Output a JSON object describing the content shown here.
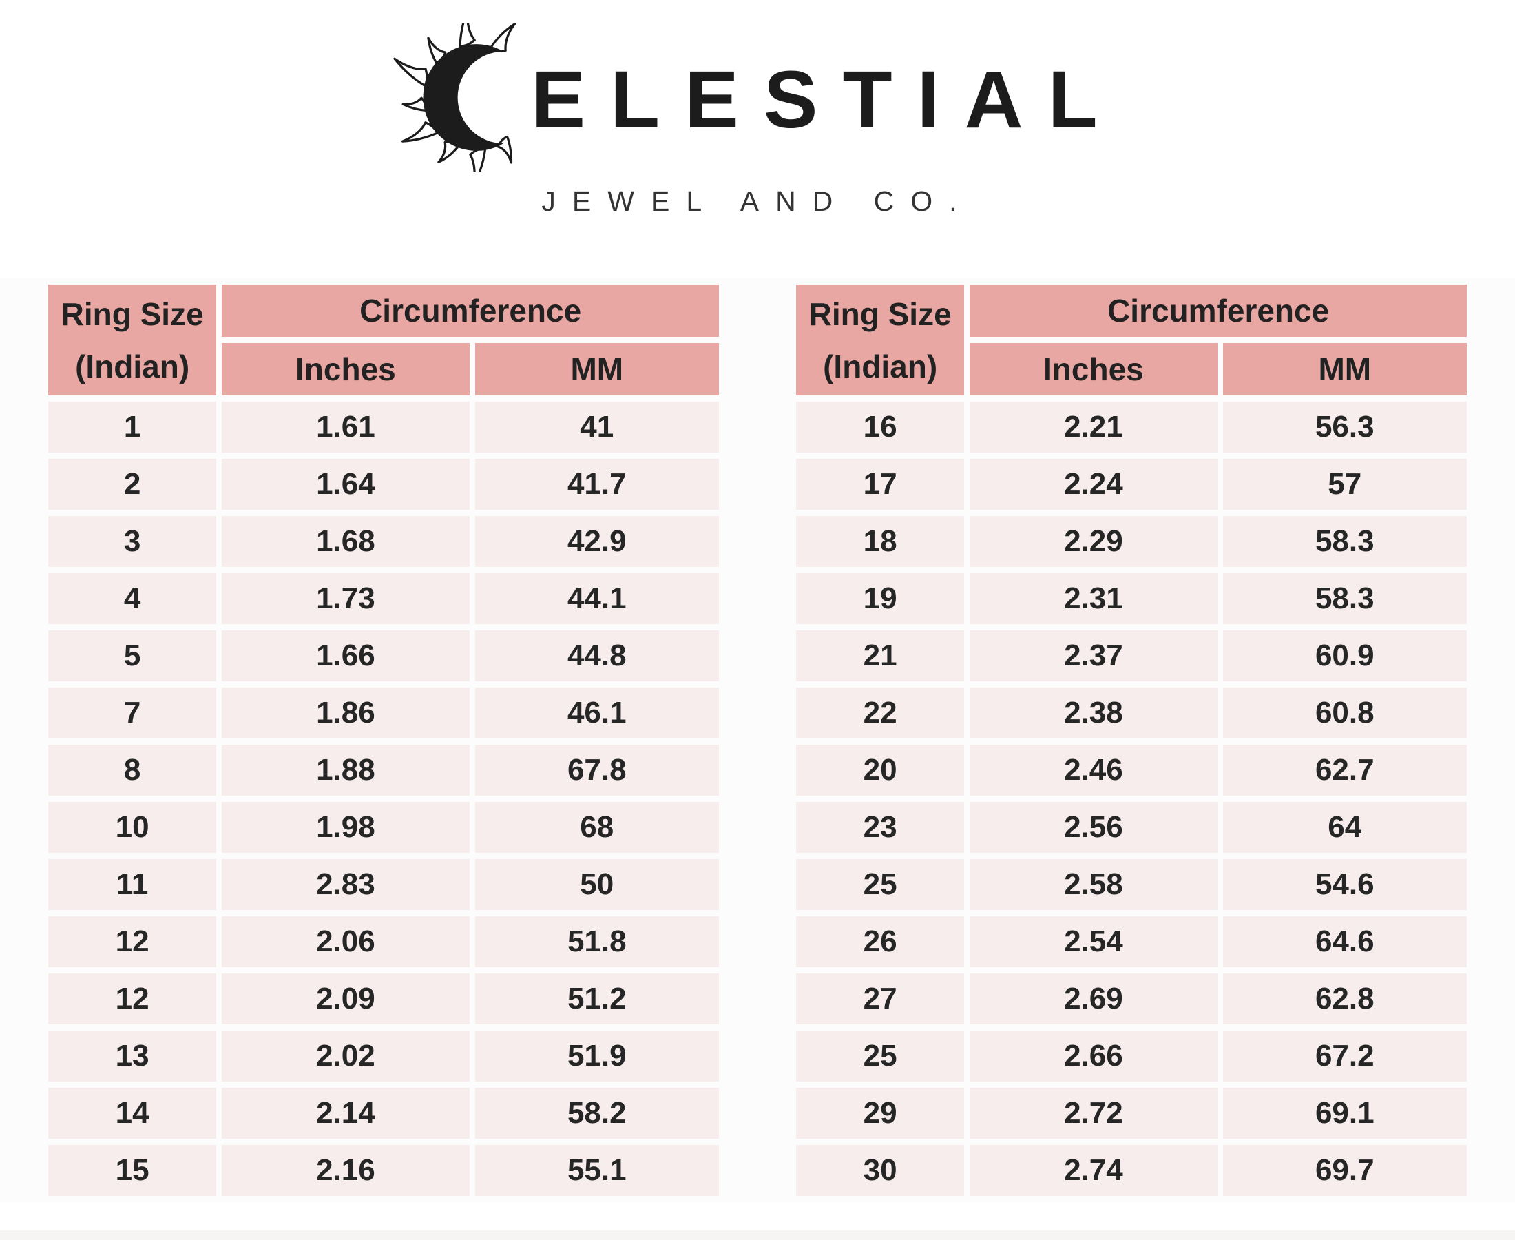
{
  "brand": {
    "icon": "crescent-sun-icon",
    "name": "CELESTIAL",
    "name_display_rest": "ELESTIAL",
    "tagline": "JEWEL AND CO."
  },
  "table_headers": {
    "ring_size_line1": "Ring Size",
    "ring_size_line2": "(Indian)",
    "circumference": "Circumference",
    "inches": "Inches",
    "mm": "MM"
  },
  "tables": [
    {
      "rows": [
        [
          "1",
          "1.61",
          "41"
        ],
        [
          "2",
          "1.64",
          "41.7"
        ],
        [
          "3",
          "1.68",
          "42.9"
        ],
        [
          "4",
          "1.73",
          "44.1"
        ],
        [
          "5",
          "1.66",
          "44.8"
        ],
        [
          "7",
          "1.86",
          "46.1"
        ],
        [
          "8",
          "1.88",
          "67.8"
        ],
        [
          "10",
          "1.98",
          "68"
        ],
        [
          "11",
          "2.83",
          "50"
        ],
        [
          "12",
          "2.06",
          "51.8"
        ],
        [
          "12",
          "2.09",
          "51.2"
        ],
        [
          "13",
          "2.02",
          "51.9"
        ],
        [
          "14",
          "2.14",
          "58.2"
        ],
        [
          "15",
          "2.16",
          "55.1"
        ]
      ]
    },
    {
      "rows": [
        [
          "16",
          "2.21",
          "56.3"
        ],
        [
          "17",
          "2.24",
          "57"
        ],
        [
          "18",
          "2.29",
          "58.3"
        ],
        [
          "19",
          "2.31",
          "58.3"
        ],
        [
          "21",
          "2.37",
          "60.9"
        ],
        [
          "22",
          "2.38",
          "60.8"
        ],
        [
          "20",
          "2.46",
          "62.7"
        ],
        [
          "23",
          "2.56",
          "64"
        ],
        [
          "25",
          "2.58",
          "54.6"
        ],
        [
          "26",
          "2.54",
          "64.6"
        ],
        [
          "27",
          "2.69",
          "62.8"
        ],
        [
          "25",
          "2.66",
          "67.2"
        ],
        [
          "29",
          "2.72",
          "69.1"
        ],
        [
          "30",
          "2.74",
          "69.7"
        ]
      ]
    }
  ],
  "colors": {
    "header_bg": "#e9a7a3",
    "row_bg": "#f6edec",
    "text": "#262626",
    "page_bg": "#ffffff"
  }
}
